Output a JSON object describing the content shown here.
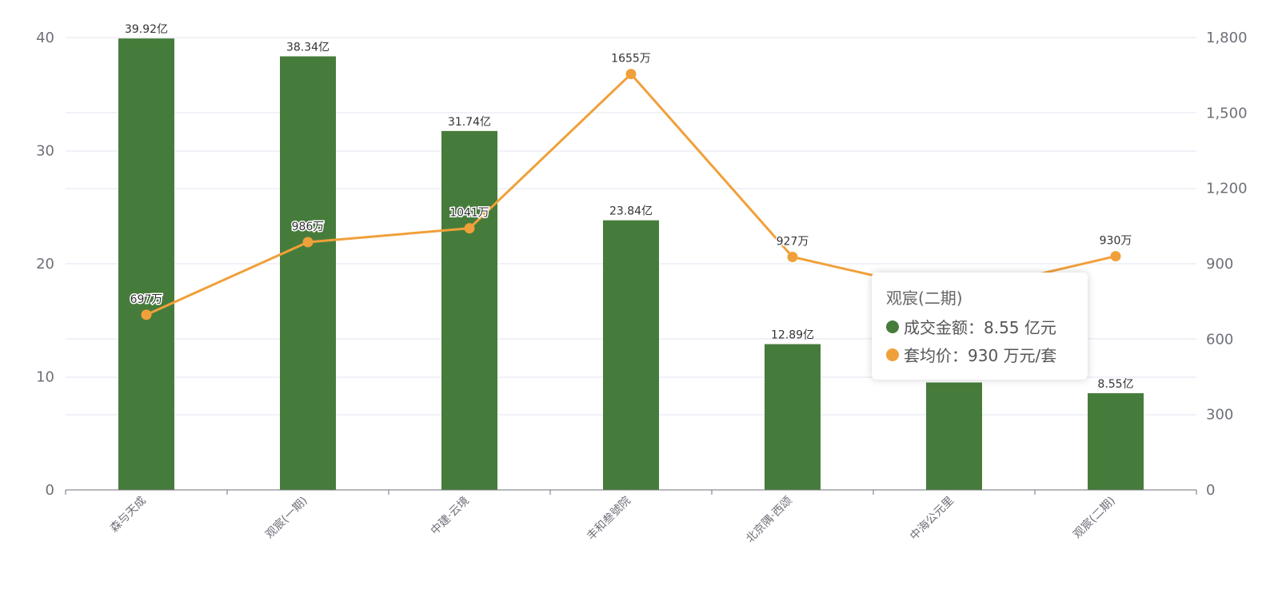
{
  "chart_data": {
    "type": "bar",
    "categories": [
      "森与天成",
      "观宸(一期)",
      "中建·云境",
      "丰和叁號院",
      "北京隅·西颂",
      "中海公元里",
      "观宸(二期)"
    ],
    "series": [
      {
        "name": "成交金额",
        "type": "bar",
        "axis": "left",
        "color": "#467c3b",
        "values": [
          39.92,
          38.34,
          31.74,
          23.84,
          12.89,
          9.5,
          8.55
        ],
        "labels": [
          "39.92亿",
          "38.34亿",
          "31.74亿",
          "23.84亿",
          "12.89亿",
          "",
          "8.55亿"
        ]
      },
      {
        "name": "套均价",
        "type": "line",
        "axis": "right",
        "color": "#f0a03a",
        "values": [
          697,
          986,
          1041,
          1655,
          927,
          780,
          930
        ],
        "labels": [
          "697万",
          "986万",
          "1041万",
          "1655万",
          "927万",
          "",
          "930万"
        ]
      }
    ],
    "y_left": {
      "min": 0,
      "max": 40,
      "ticks": [
        "0",
        "10",
        "20",
        "30",
        "40"
      ]
    },
    "y_right": {
      "min": 0,
      "max": 1800,
      "ticks": [
        "0",
        "300",
        "600",
        "900",
        "1,200",
        "1,500",
        "1,800"
      ]
    },
    "grid": true
  },
  "tooltip": {
    "title": "观宸(二期)",
    "rows": [
      {
        "text": "成交金额：8.55 亿元",
        "color": "#467c3b"
      },
      {
        "text": "套均价：930 万元/套",
        "color": "#f0a03a"
      }
    ]
  }
}
